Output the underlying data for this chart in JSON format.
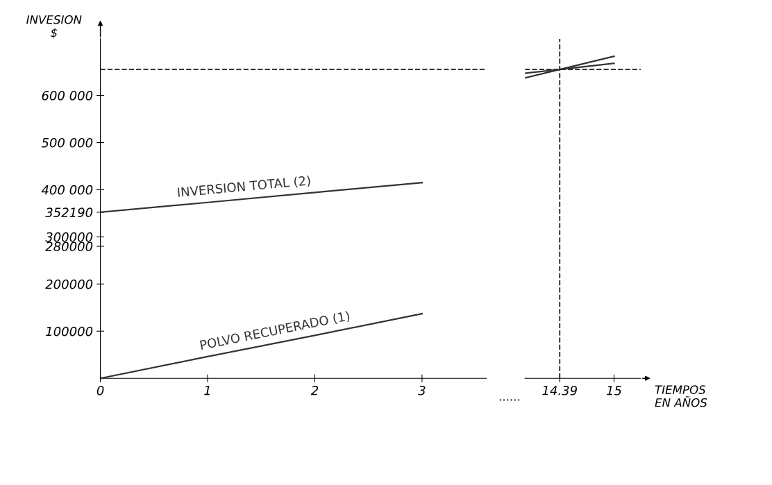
{
  "chart_data": [
    {
      "type": "line",
      "ylabel": "INVESION\n$",
      "x": [
        0,
        1,
        2,
        3
      ],
      "series": [
        {
          "name": "POLVO RECUPERADO (1)",
          "color": "#333333",
          "values": [
            0,
            46000,
            91000,
            137000
          ]
        },
        {
          "name": "INVERSION TOTAL (2)",
          "color": "#333333",
          "values": [
            352190,
            373000,
            394000,
            415000
          ]
        }
      ],
      "xlim": [
        0,
        3.6
      ],
      "xticks": [
        0,
        1,
        2,
        3
      ],
      "ylim": [
        0,
        720000
      ],
      "yticks": [
        {
          "value": 100000,
          "label": "100000"
        },
        {
          "value": 200000,
          "label": "200000"
        },
        {
          "value": 280000,
          "label": "280000"
        },
        {
          "value": 300000,
          "label": "300000"
        },
        {
          "value": 352190,
          "label": "352190"
        },
        {
          "value": 400000,
          "label": "400 000"
        },
        {
          "value": 500000,
          "label": "500 000"
        },
        {
          "value": 600000,
          "label": "600 000"
        }
      ],
      "ref_lines": [
        {
          "axis": "y",
          "value": 655000,
          "line_style": "dashed",
          "color": "#333333"
        }
      ],
      "annotations": [
        "......"
      ],
      "grid": false,
      "legend": false,
      "marker": "none",
      "line_style": "solid"
    },
    {
      "type": "line",
      "xlabel": "TIEMPOS\nEN AÑOS",
      "x": [
        14,
        14.39,
        15
      ],
      "series": [
        {
          "color": "#333333",
          "values": [
            637000,
            655000,
            683000
          ]
        },
        {
          "color": "#333333",
          "values": [
            647000,
            655000,
            668000
          ]
        }
      ],
      "xlim": [
        14,
        15.3
      ],
      "xticks": [
        14.39,
        15
      ],
      "ylim": [
        0,
        720000
      ],
      "ref_lines": [
        {
          "axis": "x",
          "value": 14.39,
          "line_style": "dashed",
          "color": "#333333"
        },
        {
          "axis": "y",
          "value": 655000,
          "line_style": "dashed",
          "color": "#333333"
        }
      ],
      "tick_labels": "x",
      "grid": false,
      "legend": false,
      "marker": "none",
      "line_style": "solid"
    }
  ]
}
